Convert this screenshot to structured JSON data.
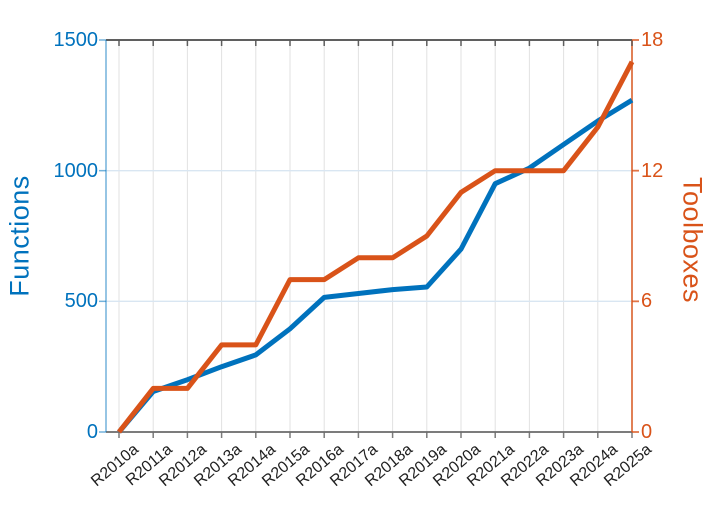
{
  "chart_data": {
    "type": "line",
    "title": "",
    "xlabel": "",
    "categories": [
      "R2010a",
      "R2011a",
      "R2012a",
      "R2013a",
      "R2014a",
      "R2015a",
      "R2016a",
      "R2017a",
      "R2018a",
      "R2019a",
      "R2020a",
      "R2021a",
      "R2022a",
      "R2023a",
      "R2024a",
      "R2025a"
    ],
    "series": [
      {
        "name": "Functions",
        "axis": "left",
        "color": "#0072BD",
        "values": [
          0,
          155,
          200,
          250,
          295,
          395,
          515,
          530,
          545,
          555,
          700,
          950,
          1010,
          1100,
          1190,
          1270
        ]
      },
      {
        "name": "Toolboxes",
        "axis": "right",
        "color": "#D95319",
        "values": [
          0,
          2,
          2,
          4,
          4,
          7,
          7,
          8,
          8,
          9,
          11,
          12,
          12,
          12,
          14,
          17
        ]
      }
    ],
    "left_axis": {
      "label": "Functions",
      "color": "#0072BD",
      "ticks": [
        0,
        500,
        1000,
        1500
      ],
      "lim": [
        0,
        1500
      ]
    },
    "right_axis": {
      "label": "Toolboxes",
      "color": "#D95319",
      "ticks": [
        0,
        6,
        12,
        18
      ],
      "lim": [
        0,
        18
      ]
    },
    "x_axis": {
      "tick_label_rotation_deg": -40,
      "tick_label_color": "#1f1f1f"
    },
    "legend": "none",
    "grid": {
      "vertical": true,
      "horizontal": true,
      "vertical_color": "#e2e2e2",
      "horizontal_color": "#d9e6f2"
    },
    "style": {
      "line_width": 5,
      "top_spine_color": "#565656",
      "bottom_spine_color": "#6e6e6e",
      "background": "#ffffff"
    }
  }
}
